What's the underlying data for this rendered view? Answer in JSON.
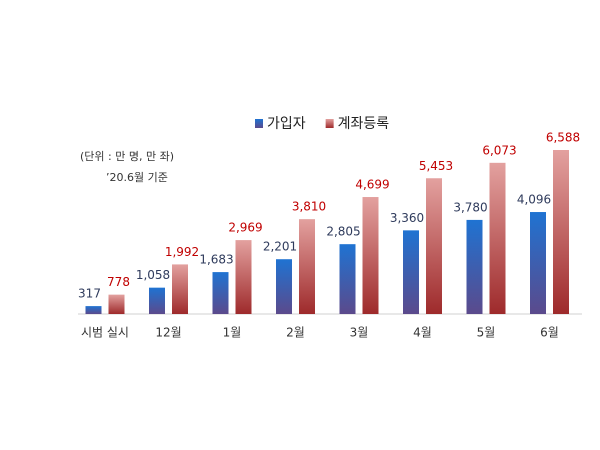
{
  "chart_data": {
    "type": "bar",
    "annotations": [
      "(단위 : 만 명, 만 좌)",
      "’20.6월 기준"
    ],
    "categories": [
      "시범 실시",
      "12월",
      "1월",
      "2월",
      "3월",
      "4월",
      "5월",
      "6월"
    ],
    "series": [
      {
        "name": "가입자",
        "color": "#1f73d2",
        "values": [
          317,
          1058,
          1683,
          2201,
          2805,
          3360,
          3780,
          4096
        ],
        "value_labels": [
          "317",
          "1,058",
          "1,683",
          "2,201",
          "2,805",
          "3,360",
          "3,780",
          "4,096"
        ]
      },
      {
        "name": "계좌등록",
        "color": "#e3a19f",
        "values": [
          778,
          1992,
          2969,
          3810,
          4699,
          5453,
          6073,
          6588
        ],
        "value_labels": [
          "778",
          "1,992",
          "2,969",
          "3,810",
          "4,699",
          "5,453",
          "6,073",
          "6,588"
        ]
      }
    ],
    "legend": "top"
  }
}
